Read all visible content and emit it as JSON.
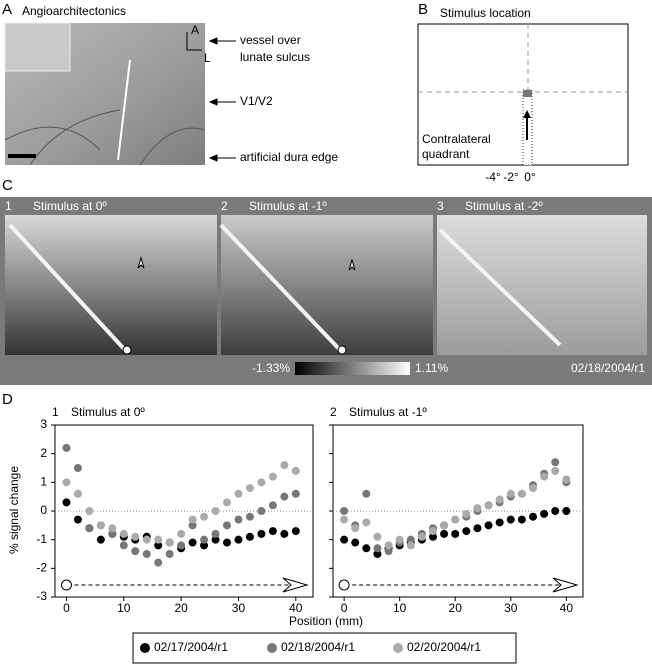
{
  "panel_a": {
    "letter": "A",
    "title": "Angioarchitectonics",
    "compass": [
      "A",
      "L"
    ],
    "labels": [
      "vessel over",
      "lunate sulcus",
      "V1/V2",
      "artificial dura edge"
    ]
  },
  "panel_b": {
    "letter": "B",
    "title": "Stimulus location",
    "quadrant_label": [
      "Contralateral",
      "quadrant"
    ],
    "ticks": [
      "-4°",
      "-2°",
      "0°"
    ]
  },
  "panel_c": {
    "letter": "C",
    "images": [
      {
        "number": "1",
        "title": "Stimulus at 0º"
      },
      {
        "number": "2",
        "title": "Stimulus at -1º"
      },
      {
        "number": "3",
        "title": "Stimulus at -2º"
      }
    ],
    "colorbar": [
      "-1.33%",
      "1.11%"
    ],
    "date": "02/18/2004/r1"
  },
  "panel_d": {
    "letter": "D",
    "ylabel": "% signal change",
    "xlabel": "Position (mm)"
  },
  "chart_data": [
    {
      "type": "scatter",
      "number": "1",
      "title": "Stimulus at 0º",
      "x": [
        0,
        2,
        4,
        6,
        8,
        10,
        12,
        14,
        16,
        18,
        20,
        22,
        24,
        26,
        28,
        30,
        32,
        34,
        36,
        38,
        40
      ],
      "xlim": [
        -2,
        43
      ],
      "ylim": [
        -3,
        3
      ],
      "xticks": [
        0,
        10,
        20,
        30,
        40
      ],
      "yticks": [
        -3,
        -2,
        -1,
        0,
        1,
        2,
        3
      ],
      "series": [
        {
          "name": "02/17/2004/r1",
          "color": "#000000",
          "values": [
            0.3,
            -0.3,
            -0.6,
            -1.0,
            -0.8,
            -0.9,
            -1.0,
            -0.9,
            -1.2,
            -1.1,
            -1.3,
            -1.1,
            -1.2,
            -1.0,
            -1.1,
            -1.0,
            -0.9,
            -0.8,
            -0.7,
            -0.8,
            -0.7
          ]
        },
        {
          "name": "02/18/2004/r1",
          "color": "#777777",
          "values": [
            2.2,
            1.5,
            -0.6,
            -0.5,
            -0.8,
            -1.2,
            -1.4,
            -1.5,
            -1.8,
            -1.5,
            -1.2,
            -0.5,
            -1.0,
            -0.8,
            -0.5,
            -0.3,
            -0.2,
            0,
            0.2,
            0.5,
            0.6
          ]
        },
        {
          "name": "02/20/2004/r1",
          "color": "#aaaaaa",
          "values": [
            1.0,
            0.6,
            0,
            -0.5,
            -0.6,
            -0.8,
            -0.9,
            -1.0,
            -1.0,
            -1.1,
            -0.8,
            -0.3,
            -0.2,
            0,
            0.3,
            0.6,
            0.8,
            1.0,
            1.2,
            1.6,
            1.4
          ]
        }
      ]
    },
    {
      "type": "scatter",
      "number": "2",
      "title": "Stimulus at -1º",
      "x": [
        0,
        2,
        4,
        6,
        8,
        10,
        12,
        14,
        16,
        18,
        20,
        22,
        24,
        26,
        28,
        30,
        32,
        34,
        36,
        38,
        40
      ],
      "xlim": [
        -2,
        43
      ],
      "ylim": [
        -3,
        3
      ],
      "xticks": [
        0,
        10,
        20,
        30,
        40
      ],
      "yticks": [
        -3,
        -2,
        -1,
        0,
        1,
        2,
        3
      ],
      "series": [
        {
          "color": "#000000",
          "values": [
            -1.0,
            -1.1,
            -1.3,
            -1.5,
            -1.3,
            -1.2,
            -1.1,
            -1.0,
            -0.9,
            -0.8,
            -0.8,
            -0.7,
            -0.6,
            -0.5,
            -0.4,
            -0.3,
            -0.3,
            -0.2,
            -0.1,
            0,
            0
          ]
        },
        {
          "color": "#777777",
          "values": [
            0,
            -0.5,
            0.6,
            -1.3,
            -1.4,
            -1.1,
            -1.0,
            -0.8,
            -0.6,
            -0.5,
            -0.3,
            -0.2,
            0,
            0.2,
            0.3,
            0.5,
            0.6,
            0.9,
            1.3,
            1.7,
            1.0
          ]
        },
        {
          "color": "#aaaaaa",
          "values": [
            -0.3,
            -0.6,
            -0.4,
            -0.9,
            -1.2,
            -1.0,
            -1.2,
            -0.9,
            -0.7,
            -0.5,
            -0.3,
            -0.1,
            0.1,
            0.2,
            0.4,
            0.6,
            0.6,
            0.8,
            1.2,
            1.4,
            1.1
          ]
        }
      ]
    }
  ]
}
